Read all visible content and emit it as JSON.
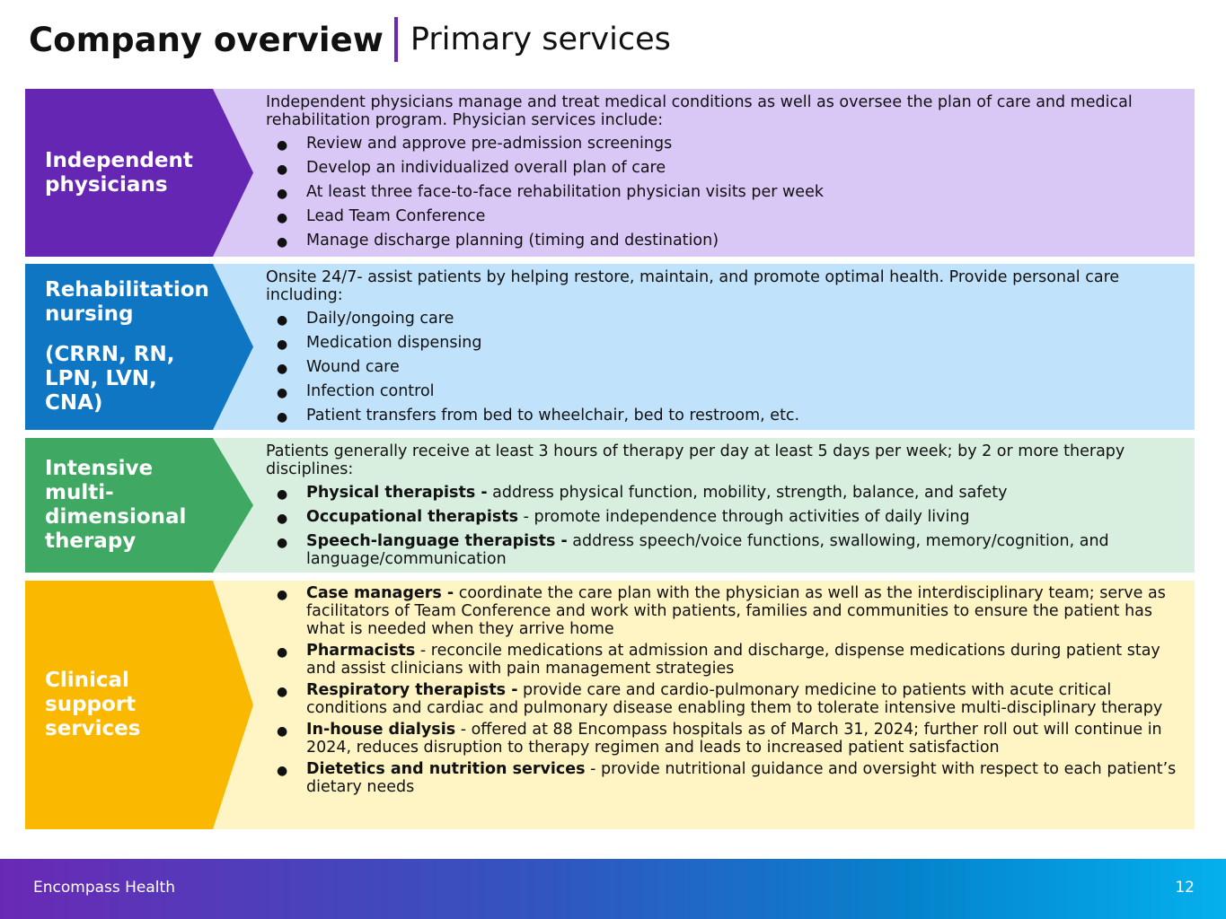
{
  "header": {
    "title": "Company overview",
    "subtitle": "Primary services"
  },
  "rows": [
    {
      "label": [
        "Independent physicians"
      ],
      "color": "#6626b4",
      "bg": "#d9c7f6",
      "intro": "Independent physicians manage and treat medical conditions as well as oversee the plan of care and medical rehabilitation program. Physician services include:",
      "items": [
        {
          "bold": "",
          "text": "Review and approve pre-admission screenings"
        },
        {
          "bold": "",
          "text": "Develop an individualized overall plan of care"
        },
        {
          "bold": "",
          "text": "At least three face-to-face rehabilitation physician visits per week"
        },
        {
          "bold": "",
          "text": "Lead Team Conference"
        },
        {
          "bold": "",
          "text": "Manage discharge planning (timing and destination)"
        }
      ]
    },
    {
      "label": [
        "Rehabilitation nursing",
        "(CRRN, RN, LPN, LVN, CNA)"
      ],
      "color": "#0f76c4",
      "bg": "#c0e2fb",
      "intro": "Onsite 24/7- assist patients by helping restore, maintain, and promote optimal health. Provide personal care including:",
      "items": [
        {
          "bold": "",
          "text": "Daily/ongoing care"
        },
        {
          "bold": "",
          "text": "Medication dispensing"
        },
        {
          "bold": "",
          "text": "Wound care"
        },
        {
          "bold": "",
          "text": "Infection control"
        },
        {
          "bold": "",
          "text": "Patient transfers from bed to wheelchair, bed to restroom, etc."
        }
      ]
    },
    {
      "label": [
        "Intensive multi-dimensional therapy"
      ],
      "color": "#3fa862",
      "bg": "#d8eedf",
      "intro": "Patients generally receive at least 3 hours of therapy per day at least 5 days per week; by 2 or more therapy disciplines:",
      "items": [
        {
          "bold": "Physical therapists -",
          "text": " address physical function, mobility, strength, balance, and safety"
        },
        {
          "bold": "Occupational therapists",
          "text": " - promote independence through activities of daily living"
        },
        {
          "bold": "Speech-language therapists -",
          "text": " address speech/voice functions, swallowing, memory/cognition, and language/communication"
        }
      ]
    },
    {
      "label": [
        "Clinical support services"
      ],
      "color": "#fbb800",
      "bg": "#fef4c4",
      "intro": "",
      "items": [
        {
          "bold": "Case managers -",
          "text": " coordinate the care plan with the physician as well as the interdisciplinary team; serve as facilitators of Team Conference and work with patients, families and communities to ensure the patient has what is needed when they arrive home"
        },
        {
          "bold": "Pharmacists",
          "text": " - reconcile medications at admission and discharge, dispense medications during patient stay and assist clinicians with pain management strategies"
        },
        {
          "bold": "Respiratory therapists -",
          "text": " provide care and cardio-pulmonary medicine to patients with acute critical conditions and cardiac and pulmonary disease enabling them to tolerate intensive multi-disciplinary therapy"
        },
        {
          "bold": "In-house dialysis",
          "text": " - offered at 88 Encompass hospitals as of March 31, 2024; further roll out will continue in 2024, reduces disruption to therapy regimen and leads to increased patient satisfaction"
        },
        {
          "bold": "Dietetics and nutrition services",
          "text": " - provide nutritional guidance and oversight with respect to each patient’s dietary needs"
        }
      ]
    }
  ],
  "footer": {
    "company": "Encompass Health",
    "page": "12"
  }
}
